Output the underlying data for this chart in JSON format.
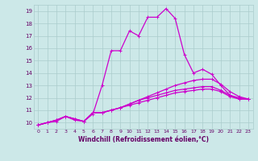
{
  "title": "",
  "xlabel": "Windchill (Refroidissement éolien,°C)",
  "ylabel": "",
  "bg_color": "#cce8e8",
  "grid_color": "#aacccc",
  "line_color": "#cc00cc",
  "xlim": [
    -0.5,
    23.5
  ],
  "ylim": [
    9.5,
    19.5
  ],
  "xticks": [
    0,
    1,
    2,
    3,
    4,
    5,
    6,
    7,
    8,
    9,
    10,
    11,
    12,
    13,
    14,
    15,
    16,
    17,
    18,
    19,
    20,
    21,
    22,
    23
  ],
  "yticks": [
    10,
    11,
    12,
    13,
    14,
    15,
    16,
    17,
    18,
    19
  ],
  "lines": [
    [
      0,
      1,
      2,
      3,
      4,
      5,
      6,
      7,
      8,
      9,
      10,
      11,
      12,
      13,
      14,
      15,
      16,
      17,
      18,
      19,
      20,
      21,
      22,
      23
    ],
    [
      9.8,
      10.0,
      10.1,
      10.5,
      10.2,
      10.1,
      10.7,
      13.0,
      15.8,
      15.8,
      17.4,
      17.0,
      18.5,
      18.5,
      19.2,
      18.4,
      15.5,
      14.0,
      14.3,
      13.9,
      13.0,
      12.2,
      12.0,
      11.9
    ],
    [
      9.8,
      10.0,
      10.2,
      10.5,
      10.3,
      10.1,
      10.8,
      10.8,
      11.0,
      11.2,
      11.5,
      11.8,
      12.1,
      12.4,
      12.7,
      13.0,
      13.2,
      13.4,
      13.5,
      13.5,
      13.1,
      12.5,
      12.1,
      11.9
    ],
    [
      9.8,
      10.0,
      10.2,
      10.5,
      10.3,
      10.1,
      10.8,
      10.8,
      11.0,
      11.2,
      11.5,
      11.8,
      12.0,
      12.2,
      12.4,
      12.6,
      12.7,
      12.8,
      12.9,
      12.9,
      12.6,
      12.2,
      11.9,
      11.9
    ],
    [
      9.8,
      10.0,
      10.2,
      10.5,
      10.3,
      10.1,
      10.8,
      10.8,
      11.0,
      11.2,
      11.4,
      11.6,
      11.8,
      12.0,
      12.2,
      12.4,
      12.5,
      12.6,
      12.7,
      12.7,
      12.5,
      12.1,
      11.9,
      11.9
    ]
  ],
  "marker": "+"
}
